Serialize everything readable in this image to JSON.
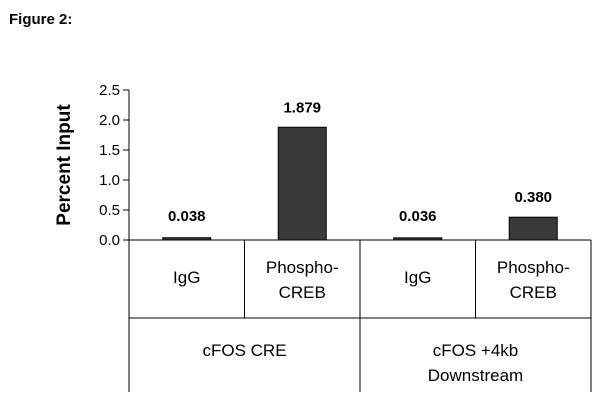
{
  "figure_label": "Figure 2:",
  "chart_data": {
    "type": "bar",
    "title": "",
    "ylabel": "Percent Input",
    "xlabel": "",
    "ylim": [
      0,
      2.5
    ],
    "yticks": [
      "0.0",
      "0.5",
      "1.0",
      "1.5",
      "2.0",
      "2.5"
    ],
    "y_tick_values": [
      0,
      0.5,
      1.0,
      1.5,
      2.0,
      2.5
    ],
    "grid": false,
    "legend": "none",
    "bar_color": "#3a3a3a",
    "categories": [
      [
        "IgG"
      ],
      [
        "Phospho-",
        "CREB"
      ],
      [
        "IgG"
      ],
      [
        "Phospho-",
        "CREB"
      ]
    ],
    "groups": [
      [
        "cFOS CRE"
      ],
      [
        "cFOS +4kb",
        "Downstream"
      ]
    ],
    "values": [
      0.038,
      1.879,
      0.036,
      0.38
    ],
    "value_labels": [
      "0.038",
      "1.879",
      "0.036",
      "0.380"
    ]
  }
}
